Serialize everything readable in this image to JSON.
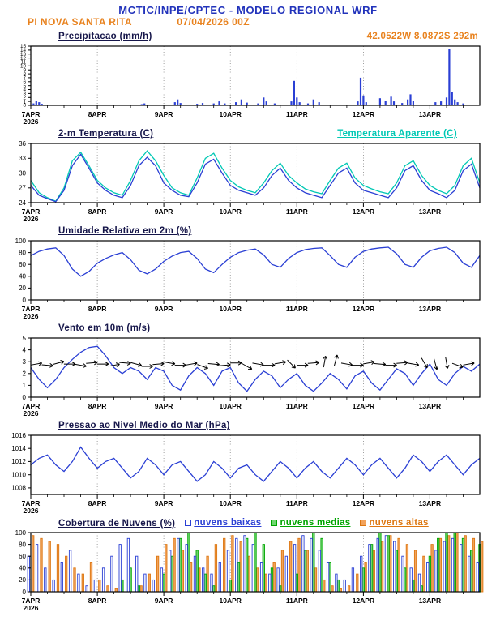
{
  "header": {
    "title": "MCTIC/INPE/CPTEC - MODELO REGIONAL WRF",
    "station": "PI NOVA SANTA RITA",
    "run": "07/04/2026 00Z",
    "location": "42.0522W 8.0872S 292m"
  },
  "colors": {
    "header_blue": "#2233bb",
    "orange": "#e8821e",
    "title_dark": "#16164a",
    "line_blue": "#2a3fd4",
    "cyan": "#00c8b4",
    "green": "#00a500",
    "black": "#000000"
  },
  "x_axis": {
    "days": [
      "7APR",
      "8APR",
      "9APR",
      "10APR",
      "11APR",
      "12APR",
      "13APR"
    ],
    "year": "2026",
    "day_hours": [
      0,
      24,
      48,
      72,
      96,
      120,
      144
    ],
    "hours_domain": [
      0,
      162
    ]
  },
  "chart_data": [
    {
      "id": "precip",
      "type": "bar",
      "title": "Precipitacao (mm/h)",
      "xlabel": "",
      "ylabel": "mm/h",
      "ylim": [
        0,
        15
      ],
      "yticks": [
        0,
        1,
        2,
        3,
        4,
        5,
        6,
        7,
        8,
        9,
        10,
        11,
        12,
        13,
        14,
        15
      ],
      "color": "#2a3fd4",
      "bars": [
        [
          1,
          0.5
        ],
        [
          2,
          1.2
        ],
        [
          3,
          0.8
        ],
        [
          4,
          0.4
        ],
        [
          40,
          0.3
        ],
        [
          41,
          0.5
        ],
        [
          52,
          0.8
        ],
        [
          53,
          1.5
        ],
        [
          54,
          0.6
        ],
        [
          60,
          0.4
        ],
        [
          62,
          0.6
        ],
        [
          66,
          0.5
        ],
        [
          68,
          1.0
        ],
        [
          70,
          0.5
        ],
        [
          74,
          0.8
        ],
        [
          76,
          1.5
        ],
        [
          78,
          0.7
        ],
        [
          82,
          0.5
        ],
        [
          84,
          2.0
        ],
        [
          85,
          1.0
        ],
        [
          88,
          0.5
        ],
        [
          94,
          1.0
        ],
        [
          95,
          6.2
        ],
        [
          96,
          2.0
        ],
        [
          97,
          0.8
        ],
        [
          100,
          0.5
        ],
        [
          102,
          1.5
        ],
        [
          104,
          0.8
        ],
        [
          118,
          1.0
        ],
        [
          119,
          7.0
        ],
        [
          120,
          2.5
        ],
        [
          121,
          0.8
        ],
        [
          126,
          1.8
        ],
        [
          128,
          1.2
        ],
        [
          130,
          2.2
        ],
        [
          131,
          1.0
        ],
        [
          134,
          0.6
        ],
        [
          136,
          1.5
        ],
        [
          137,
          2.8
        ],
        [
          138,
          1.2
        ],
        [
          146,
          0.8
        ],
        [
          148,
          1.0
        ],
        [
          150,
          2.0
        ],
        [
          151,
          14.2
        ],
        [
          152,
          3.5
        ],
        [
          153,
          1.5
        ],
        [
          154,
          0.8
        ],
        [
          156,
          0.5
        ]
      ]
    },
    {
      "id": "temp",
      "type": "line",
      "title": "2-m Temperatura (C)",
      "ylim": [
        24,
        36
      ],
      "yticks": [
        24,
        27,
        30,
        33,
        36
      ],
      "x_step": 3,
      "series": [
        {
          "name": "2-m Temperatura (C)",
          "color": "#2a3fd4",
          "values": [
            27.5,
            25.5,
            24.8,
            24.2,
            26.5,
            31.5,
            33.8,
            31.0,
            28.0,
            26.5,
            25.5,
            25.0,
            27.5,
            31.5,
            33.2,
            31.5,
            28.0,
            26.5,
            25.5,
            25.2,
            28.0,
            31.8,
            32.8,
            30.0,
            27.5,
            26.5,
            26.0,
            25.5,
            27.0,
            29.5,
            31.0,
            28.5,
            27.0,
            26.0,
            25.5,
            25.0,
            27.5,
            30.0,
            31.0,
            28.0,
            26.5,
            26.0,
            25.5,
            25.0,
            27.0,
            30.5,
            31.5,
            28.5,
            26.5,
            25.8,
            25.0,
            26.5,
            30.5,
            31.8,
            27.0
          ]
        },
        {
          "name": "Temperatura Aparente (C)",
          "color": "#00c8b4",
          "values": [
            28.5,
            26.0,
            25.0,
            24.3,
            27.0,
            32.5,
            34.2,
            31.5,
            28.5,
            27.0,
            26.0,
            25.5,
            28.5,
            32.5,
            34.5,
            32.5,
            29.5,
            27.0,
            26.0,
            25.5,
            29.0,
            33.0,
            34.0,
            31.0,
            28.5,
            27.2,
            26.5,
            26.0,
            28.0,
            30.5,
            32.0,
            29.5,
            28.0,
            26.8,
            26.2,
            25.8,
            28.5,
            31.0,
            32.0,
            29.0,
            27.5,
            26.8,
            26.2,
            25.8,
            28.0,
            31.5,
            32.5,
            29.5,
            27.5,
            26.5,
            25.8,
            27.5,
            31.5,
            33.0,
            28.0
          ]
        }
      ]
    },
    {
      "id": "rh",
      "type": "line",
      "title": "Umidade Relativa em 2m (%)",
      "ylim": [
        0,
        100
      ],
      "yticks": [
        0,
        20,
        40,
        60,
        80,
        100
      ],
      "x_step": 3,
      "series": [
        {
          "name": "Umidade Relativa em 2m (%)",
          "color": "#2a3fd4",
          "values": [
            75,
            82,
            86,
            88,
            75,
            52,
            40,
            48,
            62,
            70,
            76,
            80,
            68,
            50,
            44,
            52,
            65,
            74,
            80,
            82,
            70,
            52,
            46,
            60,
            72,
            80,
            84,
            86,
            76,
            60,
            55,
            70,
            80,
            85,
            87,
            88,
            75,
            60,
            55,
            72,
            82,
            86,
            88,
            89,
            78,
            60,
            55,
            72,
            83,
            87,
            89,
            80,
            62,
            55,
            75
          ]
        }
      ]
    },
    {
      "id": "wind",
      "type": "line",
      "title": "Vento em 10m (m/s)",
      "ylim": [
        0,
        5
      ],
      "yticks": [
        0,
        1,
        2,
        3,
        4,
        5
      ],
      "x_step": 3,
      "series": [
        {
          "name": "Vento em 10m (m/s)",
          "color": "#2a3fd4",
          "values": [
            2.5,
            1.5,
            0.8,
            1.5,
            2.5,
            3.2,
            3.8,
            4.2,
            4.3,
            3.5,
            2.5,
            2.0,
            2.5,
            2.2,
            1.5,
            2.5,
            2.2,
            1.0,
            0.6,
            1.8,
            2.5,
            2.0,
            1.0,
            2.2,
            2.5,
            1.2,
            0.5,
            1.5,
            2.2,
            1.8,
            0.8,
            1.5,
            2.0,
            1.0,
            0.5,
            1.2,
            2.0,
            1.5,
            0.7,
            1.8,
            2.2,
            1.2,
            0.6,
            1.5,
            2.4,
            2.0,
            1.0,
            2.0,
            2.8,
            1.5,
            1.0,
            2.0,
            2.6,
            2.2,
            2.8
          ]
        }
      ],
      "barbs": [
        [
          2,
          2.8,
          -10
        ],
        [
          6,
          2.7,
          5
        ],
        [
          10,
          2.9,
          -15
        ],
        [
          14,
          2.8,
          0
        ],
        [
          18,
          2.7,
          10
        ],
        [
          22,
          2.9,
          -5
        ],
        [
          26,
          2.8,
          0
        ],
        [
          30,
          2.7,
          -10
        ],
        [
          34,
          2.9,
          5
        ],
        [
          38,
          2.8,
          15
        ],
        [
          42,
          2.6,
          0
        ],
        [
          46,
          2.8,
          -5
        ],
        [
          50,
          2.9,
          10
        ],
        [
          54,
          2.7,
          0
        ],
        [
          58,
          2.8,
          -10
        ],
        [
          62,
          2.6,
          20
        ],
        [
          66,
          2.8,
          5
        ],
        [
          70,
          2.7,
          -5
        ],
        [
          74,
          2.9,
          0
        ],
        [
          78,
          2.6,
          30
        ],
        [
          82,
          2.8,
          10
        ],
        [
          86,
          2.7,
          0
        ],
        [
          90,
          2.9,
          -10
        ],
        [
          94,
          2.8,
          45
        ],
        [
          98,
          2.7,
          0
        ],
        [
          102,
          2.9,
          -5
        ],
        [
          106,
          3.0,
          -80
        ],
        [
          110,
          3.1,
          -75
        ],
        [
          114,
          2.8,
          10
        ],
        [
          118,
          2.7,
          0
        ],
        [
          122,
          2.9,
          -10
        ],
        [
          126,
          2.8,
          5
        ],
        [
          130,
          2.7,
          0
        ],
        [
          134,
          2.9,
          -5
        ],
        [
          138,
          2.8,
          10
        ],
        [
          142,
          2.9,
          60
        ],
        [
          146,
          2.8,
          75
        ],
        [
          150,
          2.9,
          80
        ],
        [
          154,
          2.7,
          20
        ],
        [
          158,
          2.8,
          -10
        ]
      ]
    },
    {
      "id": "pressure",
      "type": "line",
      "title": "Pressao ao Nivel Medio do Mar (hPa)",
      "ylim": [
        1007,
        1016
      ],
      "yticks": [
        1008,
        1010,
        1012,
        1014,
        1016
      ],
      "x_step": 3,
      "series": [
        {
          "name": "Pressao ao Nivel Medio do Mar (hPa)",
          "color": "#2a3fd4",
          "values": [
            1011.5,
            1012.5,
            1013.0,
            1011.5,
            1010.5,
            1012.0,
            1014.2,
            1012.5,
            1011.0,
            1012.0,
            1012.5,
            1011.0,
            1009.5,
            1010.5,
            1012.5,
            1011.5,
            1010.0,
            1011.5,
            1012.0,
            1010.5,
            1009.0,
            1010.0,
            1012.0,
            1011.0,
            1009.5,
            1011.0,
            1011.5,
            1010.0,
            1009.0,
            1010.5,
            1012.0,
            1011.0,
            1009.5,
            1011.0,
            1012.0,
            1010.5,
            1009.5,
            1011.0,
            1012.5,
            1011.5,
            1010.0,
            1011.5,
            1012.5,
            1011.0,
            1009.5,
            1011.0,
            1013.0,
            1012.0,
            1010.5,
            1012.0,
            1013.0,
            1011.5,
            1010.0,
            1011.5,
            1012.5
          ]
        }
      ]
    },
    {
      "id": "clouds",
      "type": "bar-multi",
      "title": "Cobertura de Nuvens (%)",
      "ylim": [
        0,
        100
      ],
      "yticks": [
        0,
        20,
        40,
        60,
        80,
        100
      ],
      "x_step": 3,
      "series": [
        {
          "name": "nuvens baixas",
          "color": "#2a3fd4",
          "fill": "#ffffff",
          "values": [
            60,
            80,
            40,
            20,
            50,
            70,
            30,
            10,
            20,
            40,
            60,
            80,
            90,
            60,
            30,
            20,
            40,
            70,
            90,
            80,
            60,
            40,
            30,
            50,
            70,
            90,
            95,
            80,
            50,
            30,
            40,
            60,
            80,
            95,
            90,
            70,
            50,
            30,
            20,
            40,
            60,
            80,
            90,
            95,
            85,
            60,
            40,
            30,
            50,
            70,
            85,
            90,
            80,
            60,
            50
          ]
        },
        {
          "name": "nuvens medias",
          "color": "#00a500",
          "fill": "#6fd66f",
          "values": [
            0,
            0,
            0,
            0,
            0,
            0,
            0,
            0,
            0,
            0,
            0,
            20,
            40,
            10,
            0,
            0,
            30,
            60,
            90,
            100,
            70,
            30,
            10,
            0,
            20,
            50,
            90,
            100,
            80,
            40,
            10,
            0,
            30,
            70,
            100,
            90,
            50,
            20,
            0,
            0,
            40,
            80,
            100,
            95,
            70,
            40,
            20,
            10,
            60,
            90,
            100,
            100,
            90,
            70,
            80
          ]
        },
        {
          "name": "nuvens altas",
          "color": "#dd7711",
          "fill": "#f2a35c",
          "values": [
            95,
            90,
            85,
            80,
            60,
            40,
            30,
            50,
            20,
            10,
            5,
            0,
            0,
            10,
            30,
            60,
            80,
            90,
            70,
            50,
            40,
            60,
            80,
            90,
            95,
            85,
            60,
            40,
            30,
            50,
            70,
            85,
            90,
            70,
            40,
            20,
            10,
            5,
            10,
            30,
            50,
            70,
            85,
            95,
            90,
            80,
            70,
            60,
            80,
            90,
            95,
            100,
            95,
            90,
            85
          ]
        }
      ]
    }
  ]
}
